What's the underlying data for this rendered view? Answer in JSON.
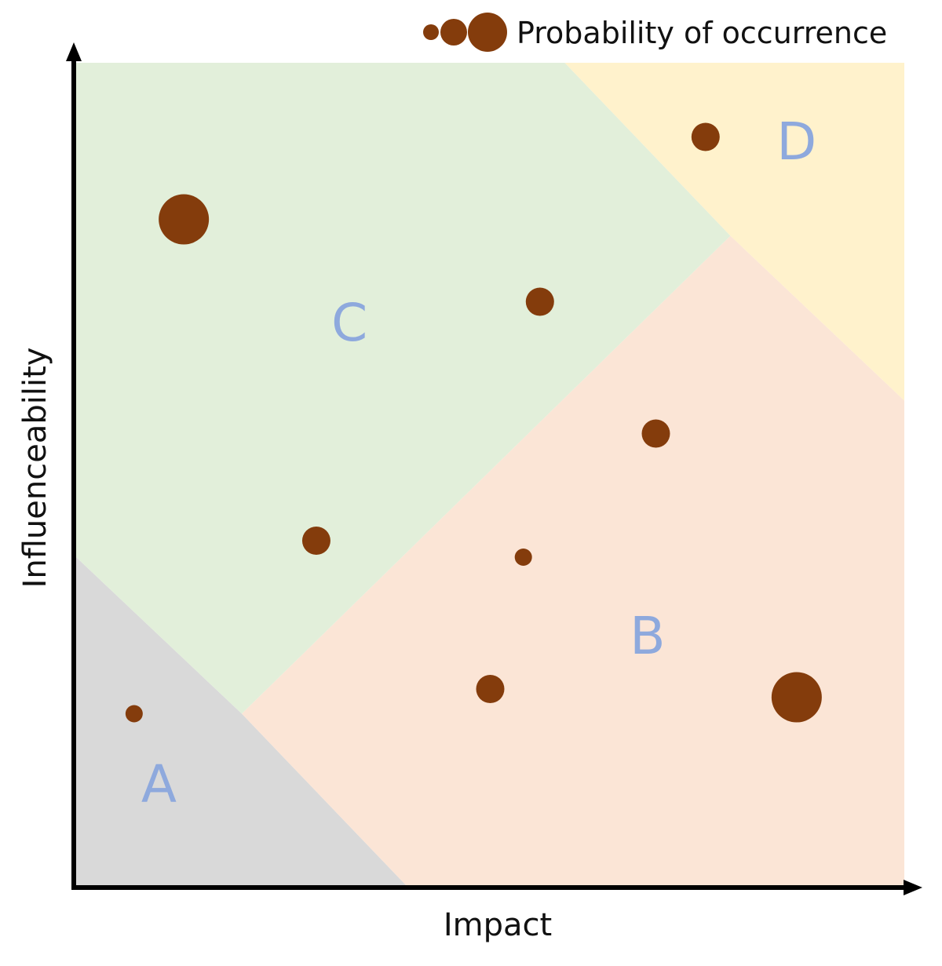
{
  "chart_data": {
    "type": "scatter",
    "title": "",
    "xlabel": "Impact",
    "ylabel": "Influenceability",
    "xlim": [
      0,
      10
    ],
    "ylim": [
      0,
      10
    ],
    "grid": false,
    "legend": {
      "label": "Probability of occurrence",
      "placement": "top-right",
      "size_steps": [
        1,
        2,
        3
      ]
    },
    "colors": {
      "point": "#843c0c",
      "axis": "#000000",
      "label": "#8ea9dd",
      "region_A": "#d9d9d9",
      "region_B": "#fbe5d6",
      "region_C": "#e2efda",
      "region_D": "#fff2cc"
    },
    "regions": [
      {
        "name": "A",
        "polygon": [
          [
            0,
            0
          ],
          [
            4,
            0
          ],
          [
            2,
            2.1
          ],
          [
            0,
            4
          ]
        ],
        "label_pos": [
          1,
          1.2
        ]
      },
      {
        "name": "B",
        "polygon": [
          [
            4,
            0
          ],
          [
            10,
            0
          ],
          [
            10,
            5.9
          ],
          [
            7.9,
            7.9
          ],
          [
            2,
            2.1
          ]
        ],
        "label_pos": [
          6.9,
          3
        ]
      },
      {
        "name": "C",
        "polygon": [
          [
            0,
            4
          ],
          [
            2,
            2.1
          ],
          [
            7.9,
            7.9
          ],
          [
            5.9,
            10
          ],
          [
            0,
            10
          ]
        ],
        "label_pos": [
          3.3,
          6.8
        ]
      },
      {
        "name": "D",
        "polygon": [
          [
            5.9,
            10
          ],
          [
            10,
            10
          ],
          [
            10,
            5.9
          ],
          [
            7.9,
            7.9
          ]
        ],
        "label_pos": [
          8.7,
          9
        ]
      }
    ],
    "points": [
      {
        "x": 0.7,
        "y": 2.1,
        "size": 1
      },
      {
        "x": 1.3,
        "y": 8.1,
        "size": 3
      },
      {
        "x": 2.9,
        "y": 4.2,
        "size": 2
      },
      {
        "x": 5.0,
        "y": 2.4,
        "size": 2
      },
      {
        "x": 5.4,
        "y": 4.0,
        "size": 1
      },
      {
        "x": 5.6,
        "y": 7.1,
        "size": 2
      },
      {
        "x": 7.0,
        "y": 5.5,
        "size": 2
      },
      {
        "x": 7.6,
        "y": 9.1,
        "size": 2
      },
      {
        "x": 8.7,
        "y": 2.3,
        "size": 3
      }
    ]
  }
}
